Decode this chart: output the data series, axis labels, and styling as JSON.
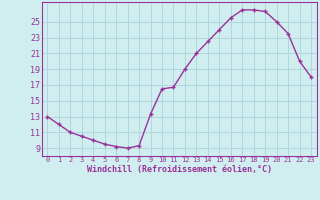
{
  "x": [
    0,
    1,
    2,
    3,
    4,
    5,
    6,
    7,
    8,
    9,
    10,
    11,
    12,
    13,
    14,
    15,
    16,
    17,
    18,
    19,
    20,
    21,
    22,
    23
  ],
  "y": [
    13.0,
    12.0,
    11.0,
    10.5,
    10.0,
    9.5,
    9.2,
    9.0,
    9.3,
    13.3,
    16.5,
    16.7,
    19.0,
    21.0,
    22.5,
    24.0,
    25.5,
    26.5,
    26.5,
    26.3,
    25.0,
    23.5,
    20.0,
    18.0
  ],
  "line_color": "#993399",
  "marker": "+",
  "bg_color": "#d0eef0",
  "grid_color": "#b0d8dc",
  "xlabel": "Windchill (Refroidissement éolien,°C)",
  "ylabel_ticks": [
    9,
    11,
    13,
    15,
    17,
    19,
    21,
    23,
    25
  ],
  "xticks": [
    0,
    1,
    2,
    3,
    4,
    5,
    6,
    7,
    8,
    9,
    10,
    11,
    12,
    13,
    14,
    15,
    16,
    17,
    18,
    19,
    20,
    21,
    22,
    23
  ],
  "ylim": [
    8.0,
    27.5
  ],
  "xlim": [
    -0.5,
    23.5
  ]
}
